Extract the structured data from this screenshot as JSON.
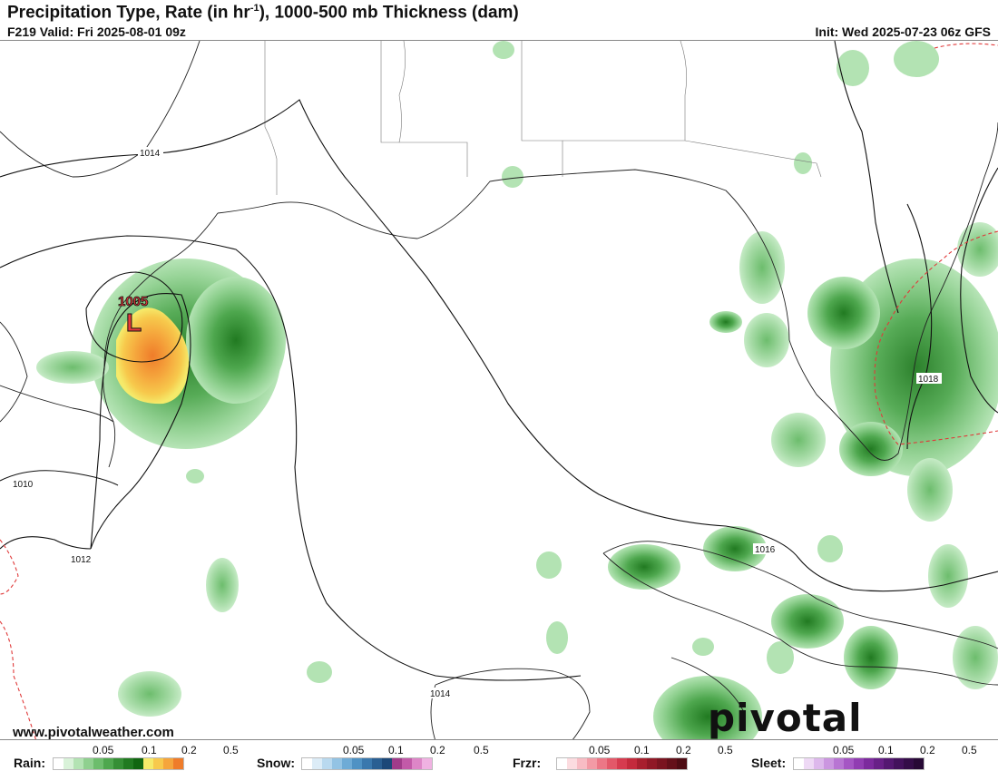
{
  "header": {
    "title_pre": "Precipitation Type, Rate (in hr",
    "title_sup": "-1",
    "title_post": "), 1000-500 mb Thickness (dam)",
    "valid": "F219 Valid: Fri 2025-08-01 09z",
    "init": "Init: Wed 2025-07-23 06z GFS"
  },
  "map": {
    "isobar_labels": [
      "1014",
      "1005",
      "1010",
      "1012",
      "1014",
      "1016",
      "1018"
    ],
    "low_symbol": "L",
    "low_pressure": "1005"
  },
  "branding": {
    "url": "www.pivotalweather.com",
    "logo": "pivotal weather"
  },
  "legend": {
    "rain": {
      "label": "Rain:",
      "ticks": [
        "0.05",
        "0.1",
        "0.2",
        "0.5"
      ],
      "colors": [
        "#ffffff",
        "#d9f2d9",
        "#b3e3b3",
        "#8fd08f",
        "#6dbd6d",
        "#4ea74e",
        "#358f35",
        "#217a21",
        "#116611",
        "#f5ea6a",
        "#f7c94c",
        "#f5a53c",
        "#ef7c2a"
      ]
    },
    "snow": {
      "label": "Snow:",
      "ticks": [
        "0.05",
        "0.1",
        "0.2",
        "0.5"
      ],
      "colors": [
        "#ffffff",
        "#dcecf7",
        "#b9d9ef",
        "#93c3e4",
        "#6eabd6",
        "#4f92c4",
        "#3a78ad",
        "#2a5f92",
        "#1c4878",
        "#a03c8a",
        "#c25aa8",
        "#dd86c7",
        "#f0b2e2"
      ]
    },
    "frzr": {
      "label": "Frzr:",
      "ticks": [
        "0.05",
        "0.1",
        "0.2",
        "0.5"
      ],
      "colors": [
        "#ffffff",
        "#fcdce0",
        "#f8bcc4",
        "#f39aa5",
        "#ec7786",
        "#e35869",
        "#d63b4f",
        "#c42a3c",
        "#a81f2e",
        "#901826",
        "#7a1420",
        "#64101a",
        "#4e0c14"
      ]
    },
    "sleet": {
      "label": "Sleet:",
      "ticks": [
        "0.05",
        "0.1",
        "0.2",
        "0.5"
      ],
      "colors": [
        "#ffffff",
        "#eed9f5",
        "#ddb8ec",
        "#cb96e0",
        "#b875d3",
        "#a556c4",
        "#913db2",
        "#7c2a9d",
        "#682087",
        "#541871",
        "#43125c",
        "#340d48",
        "#270935"
      ]
    }
  }
}
